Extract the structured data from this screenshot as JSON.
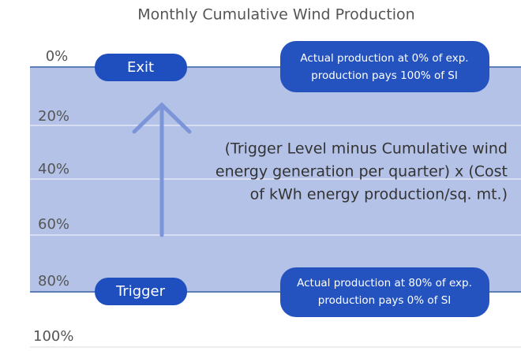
{
  "title": "Monthly Cumulative Wind Production",
  "levels": [
    "0%",
    "20%",
    "40%",
    "60%",
    "80%",
    "100%"
  ],
  "exit_label": "Exit",
  "trigger_label": "Trigger",
  "exit_note": [
    "Actual production at 0% of exp.",
    "production pays 100% of SI"
  ],
  "trigger_note": [
    "Actual production at 80% of exp.",
    "production pays 0% of SI"
  ],
  "formula": [
    "(Trigger Level minus Cumulative wind",
    "energy generation per quarter) x (Cost",
    "of kWh energy production/sq. mt.)"
  ]
}
